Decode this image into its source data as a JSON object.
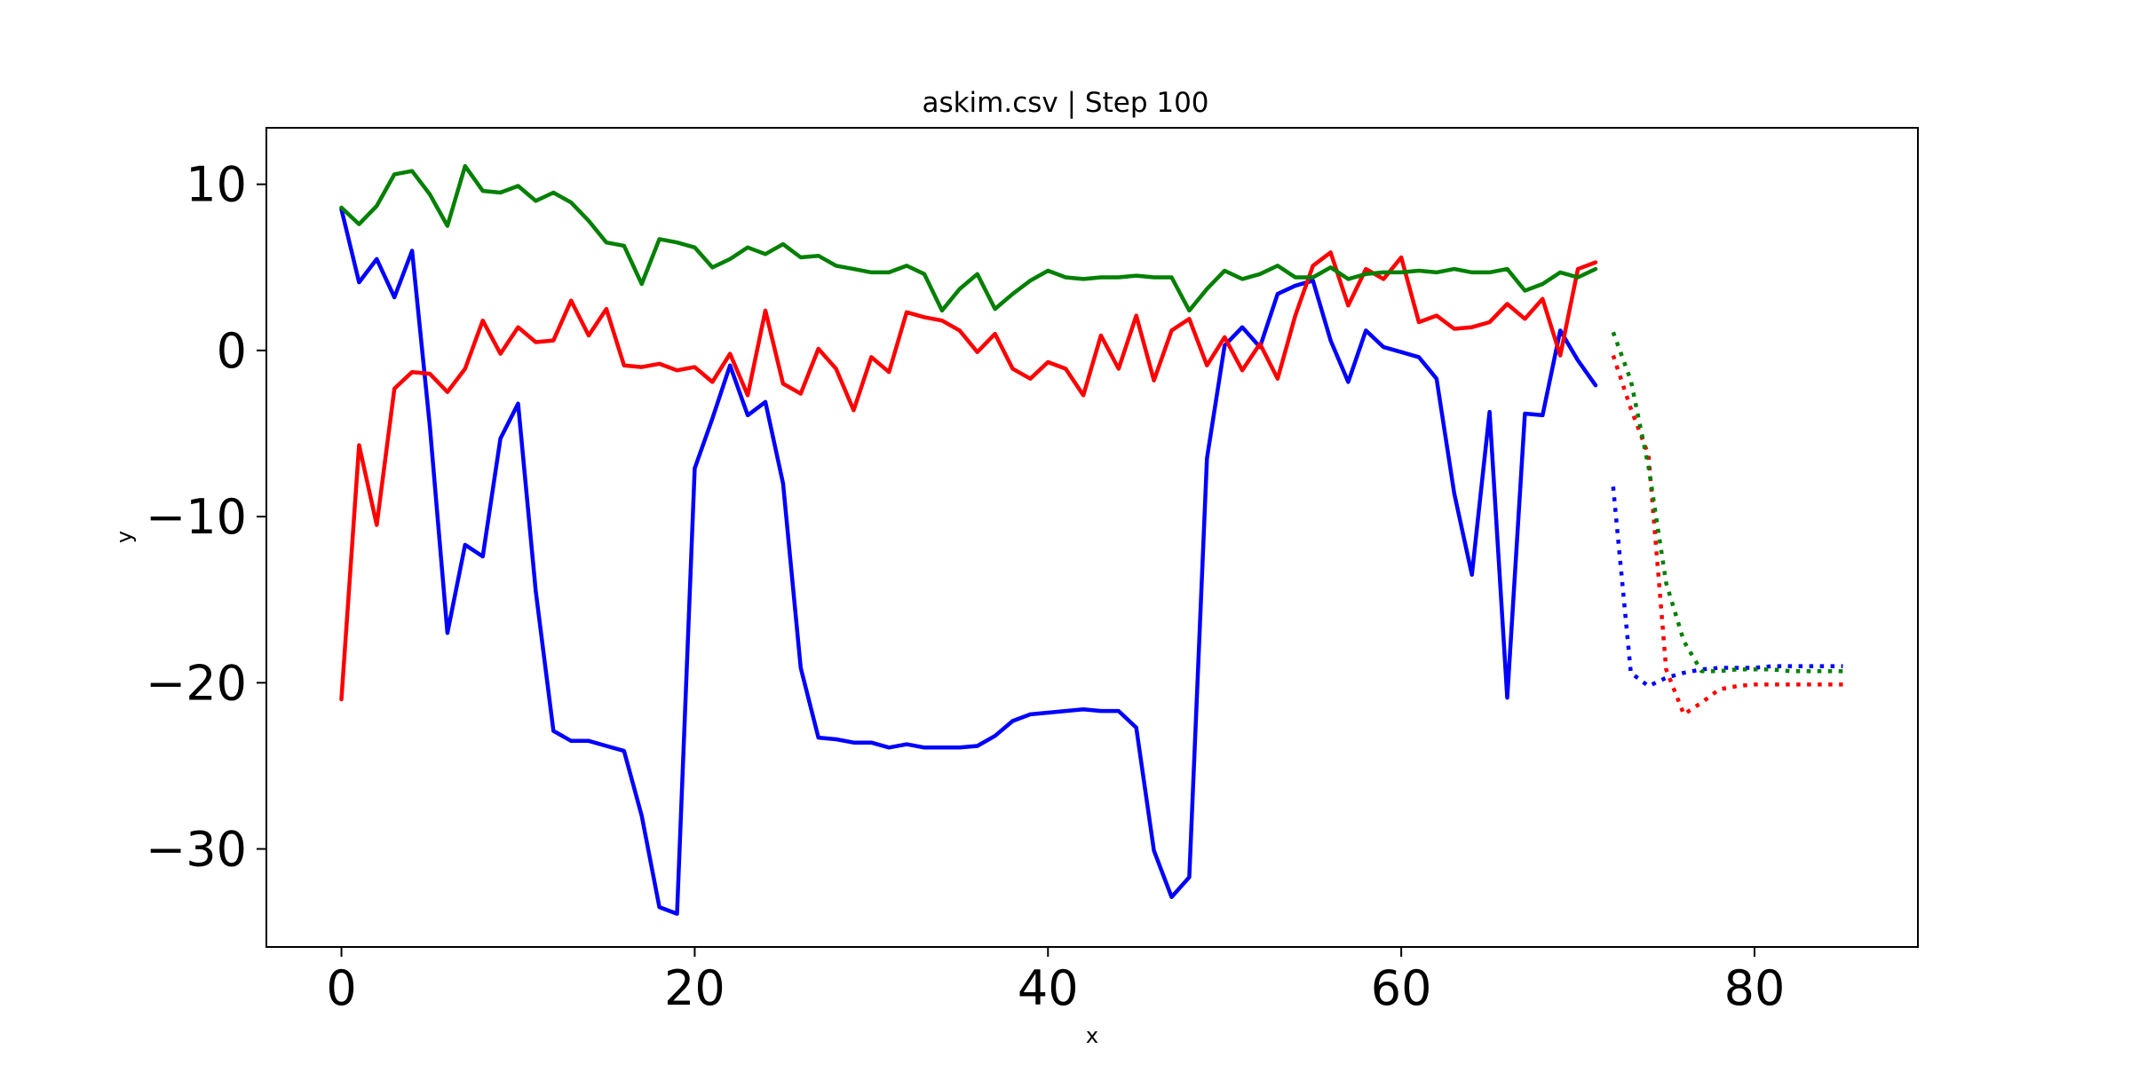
{
  "chart_data": {
    "type": "line",
    "title": "askim.csv | Step 100",
    "xlabel": "x",
    "ylabel": "y",
    "xlim": [
      -4.25,
      89.25
    ],
    "ylim": [
      -35.9,
      13.4
    ],
    "xticks": [
      0,
      20,
      40,
      60,
      80
    ],
    "yticks": [
      10,
      0,
      -10,
      -20,
      -30
    ],
    "ytick_labels": [
      "10",
      "0",
      "−10",
      "−20",
      "−30"
    ],
    "grid": false,
    "legend": "none",
    "series": [
      {
        "color": "#0000ff",
        "style": "solid",
        "x": [
          0,
          1,
          2,
          3,
          4,
          5,
          6,
          7,
          8,
          9,
          10,
          11,
          12,
          13,
          14,
          15,
          16,
          17,
          18,
          19,
          20,
          21,
          22,
          23,
          24,
          25,
          26,
          27,
          28,
          29,
          30,
          31,
          32,
          33,
          34,
          35,
          36,
          37,
          38,
          39,
          40,
          41,
          42,
          43,
          44,
          45,
          46,
          47,
          48,
          49,
          50,
          51,
          52,
          53,
          54,
          55,
          56,
          57,
          58,
          59,
          60,
          61,
          62,
          63,
          64,
          65,
          66,
          67,
          68,
          69,
          70,
          71
        ],
        "y": [
          8.5,
          4.1,
          5.5,
          3.2,
          6.0,
          -4.5,
          -17.0,
          -11.7,
          -12.4,
          -5.3,
          -3.2,
          -14.5,
          -22.9,
          -23.5,
          -23.5,
          -23.8,
          -24.1,
          -28.0,
          -33.5,
          -33.9,
          -7.1,
          -4.1,
          -0.9,
          -3.9,
          -3.1,
          -8.0,
          -19.1,
          -23.3,
          -23.4,
          -23.6,
          -23.6,
          -23.9,
          -23.7,
          -23.9,
          -23.9,
          -23.9,
          -23.8,
          -23.2,
          -22.3,
          -21.9,
          -21.8,
          -21.7,
          -21.6,
          -21.7,
          -21.7,
          -22.7,
          -30.1,
          -32.9,
          -31.7,
          -6.5,
          0.3,
          1.4,
          0.2,
          3.4,
          3.9,
          4.2,
          0.6,
          -1.9,
          1.2,
          0.2,
          -0.1,
          -0.4,
          -1.7,
          -8.6,
          -13.5,
          -3.7,
          -20.9,
          -3.8,
          -3.9,
          1.2,
          -0.6,
          -2.1
        ]
      },
      {
        "color": "#ff0000",
        "style": "solid",
        "x": [
          0,
          1,
          2,
          3,
          4,
          5,
          6,
          7,
          8,
          9,
          10,
          11,
          12,
          13,
          14,
          15,
          16,
          17,
          18,
          19,
          20,
          21,
          22,
          23,
          24,
          25,
          26,
          27,
          28,
          29,
          30,
          31,
          32,
          33,
          34,
          35,
          36,
          37,
          38,
          39,
          40,
          41,
          42,
          43,
          44,
          45,
          46,
          47,
          48,
          49,
          50,
          51,
          52,
          53,
          54,
          55,
          56,
          57,
          58,
          59,
          60,
          61,
          62,
          63,
          64,
          65,
          66,
          67,
          68,
          69,
          70,
          71
        ],
        "y": [
          -21.0,
          -5.7,
          -10.5,
          -2.3,
          -1.3,
          -1.4,
          -2.5,
          -1.1,
          1.8,
          -0.2,
          1.4,
          0.5,
          0.6,
          3.0,
          0.9,
          2.5,
          -0.9,
          -1.0,
          -0.8,
          -1.2,
          -1.0,
          -1.9,
          -0.2,
          -2.7,
          2.4,
          -2.0,
          -2.6,
          0.1,
          -1.1,
          -3.6,
          -0.4,
          -1.3,
          2.3,
          2.0,
          1.8,
          1.2,
          -0.1,
          1.0,
          -1.1,
          -1.7,
          -0.7,
          -1.1,
          -2.7,
          0.9,
          -1.1,
          2.1,
          -1.8,
          1.2,
          1.9,
          -0.9,
          0.8,
          -1.2,
          0.4,
          -1.7,
          2.1,
          5.1,
          5.9,
          2.7,
          4.9,
          4.3,
          5.6,
          1.7,
          2.1,
          1.3,
          1.4,
          1.7,
          2.8,
          1.9,
          3.1,
          -0.3,
          4.9,
          5.3
        ]
      },
      {
        "color": "#008000",
        "style": "solid",
        "x": [
          0,
          1,
          2,
          3,
          4,
          5,
          6,
          7,
          8,
          9,
          10,
          11,
          12,
          13,
          14,
          15,
          16,
          17,
          18,
          19,
          20,
          21,
          22,
          23,
          24,
          25,
          26,
          27,
          28,
          29,
          30,
          31,
          32,
          33,
          34,
          35,
          36,
          37,
          38,
          39,
          40,
          41,
          42,
          43,
          44,
          45,
          46,
          47,
          48,
          49,
          50,
          51,
          52,
          53,
          54,
          55,
          56,
          57,
          58,
          59,
          60,
          61,
          62,
          63,
          64,
          65,
          66,
          67,
          68,
          69,
          70,
          71
        ],
        "y": [
          8.6,
          7.6,
          8.7,
          10.6,
          10.8,
          9.4,
          7.5,
          11.1,
          9.6,
          9.5,
          9.9,
          9.0,
          9.5,
          8.9,
          7.8,
          6.5,
          6.3,
          4.0,
          6.7,
          6.5,
          6.2,
          5.0,
          5.5,
          6.2,
          5.8,
          6.4,
          5.6,
          5.7,
          5.1,
          4.9,
          4.7,
          4.7,
          5.1,
          4.6,
          2.4,
          3.7,
          4.6,
          2.5,
          3.4,
          4.2,
          4.8,
          4.4,
          4.3,
          4.4,
          4.4,
          4.5,
          4.4,
          4.4,
          2.4,
          3.7,
          4.8,
          4.3,
          4.6,
          5.1,
          4.4,
          4.4,
          5.0,
          4.3,
          4.6,
          4.7,
          4.7,
          4.8,
          4.7,
          4.9,
          4.7,
          4.7,
          4.9,
          3.6,
          4.0,
          4.7,
          4.4,
          4.9
        ]
      },
      {
        "color": "#0000ff",
        "style": "dotted",
        "x": [
          72,
          73,
          74,
          75,
          76,
          77,
          78,
          79,
          80,
          81,
          82,
          83,
          84,
          85
        ],
        "y": [
          -8.2,
          -19.4,
          -20.2,
          -19.7,
          -19.4,
          -19.2,
          -19.1,
          -19.1,
          -19.1,
          -19.0,
          -19.0,
          -19.0,
          -19.0,
          -19.0
        ]
      },
      {
        "color": "#ff0000",
        "style": "dotted",
        "x": [
          72,
          73,
          74,
          75,
          76,
          77,
          78,
          79,
          80,
          81,
          82,
          83,
          84,
          85
        ],
        "y": [
          -0.3,
          -3.5,
          -6.3,
          -19.2,
          -21.9,
          -21.2,
          -20.4,
          -20.2,
          -20.1,
          -20.1,
          -20.1,
          -20.1,
          -20.1,
          -20.1
        ]
      },
      {
        "color": "#008000",
        "style": "dotted",
        "x": [
          72,
          73,
          74,
          75,
          76,
          77,
          78,
          79,
          80,
          81,
          82,
          83,
          84,
          85
        ],
        "y": [
          1.1,
          -1.8,
          -7.0,
          -14.0,
          -17.5,
          -19.3,
          -19.3,
          -19.2,
          -19.2,
          -19.2,
          -19.3,
          -19.3,
          -19.3,
          -19.3
        ]
      }
    ]
  }
}
